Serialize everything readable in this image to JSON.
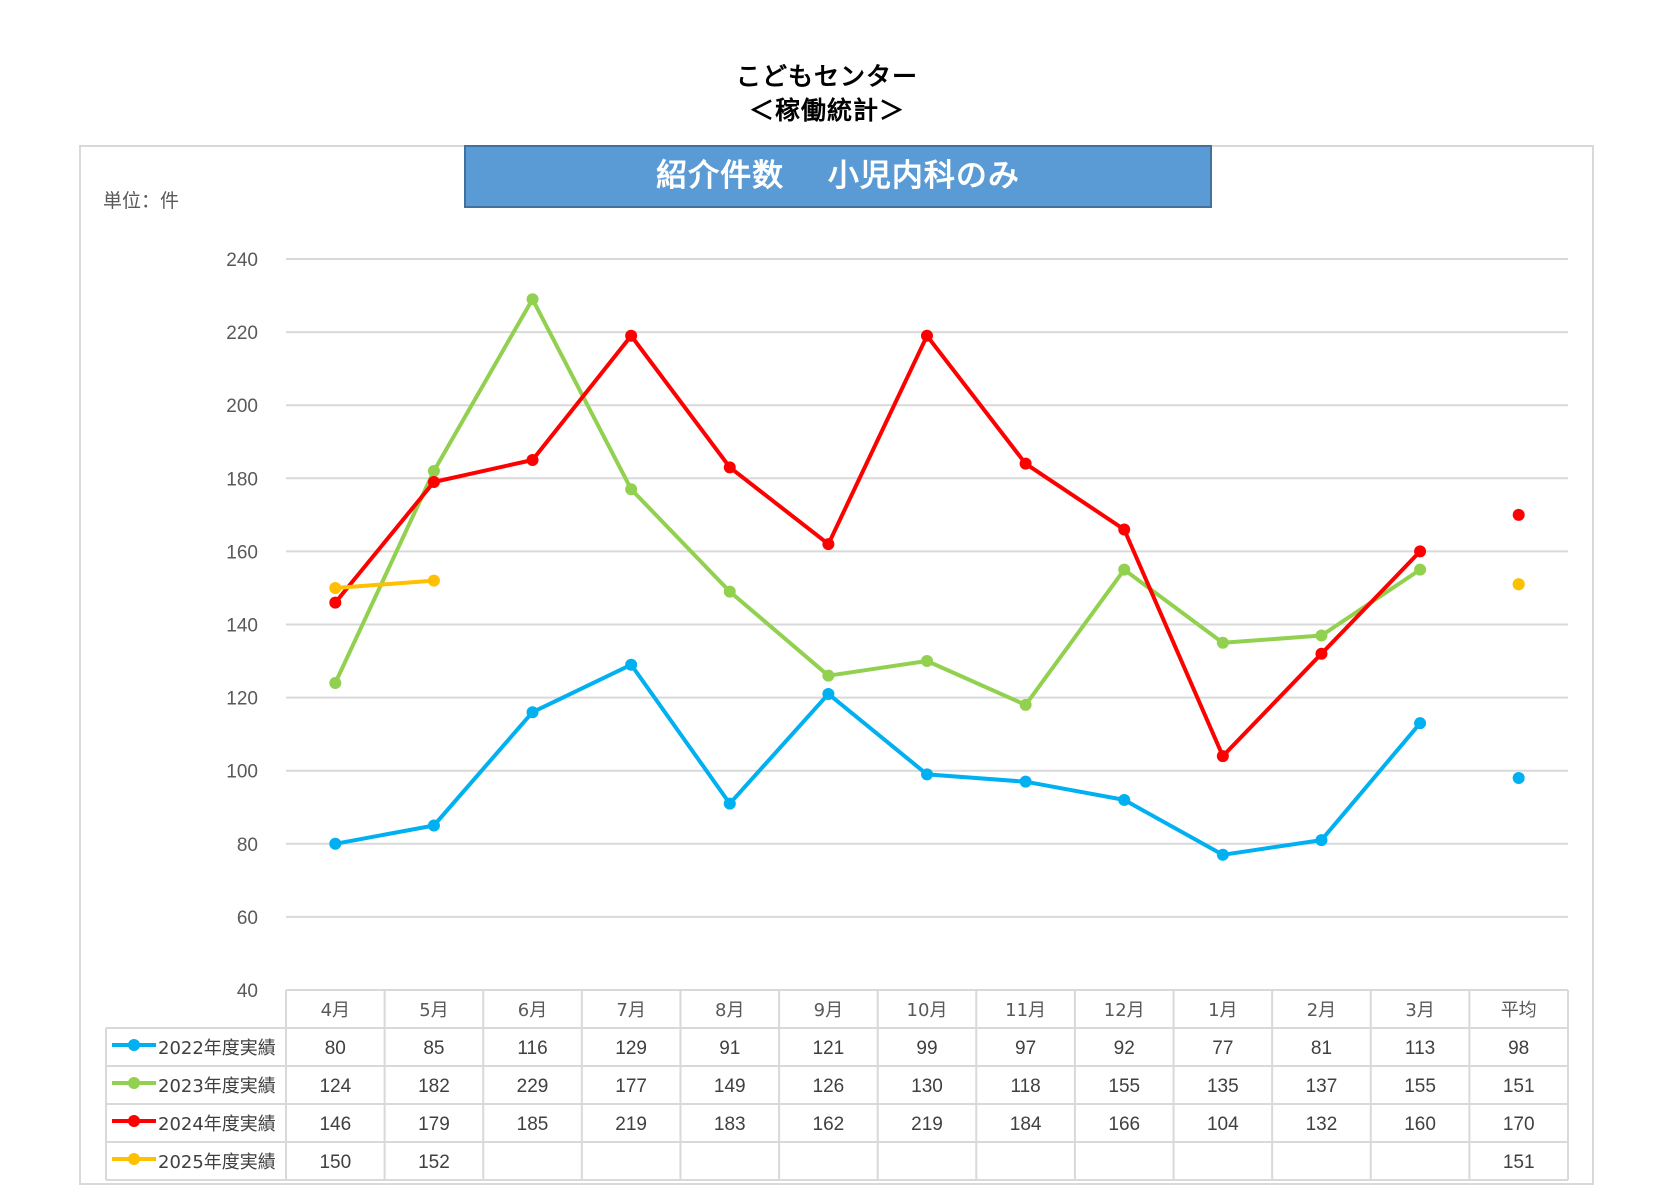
{
  "header": {
    "title_line1": "こどもセンター",
    "title_line2": "＜稼働統計＞"
  },
  "chart_title": "紹介件数　 小児内科のみ",
  "unit_label": "単位：件",
  "chart_data": {
    "type": "line",
    "categories": [
      "4月",
      "5月",
      "6月",
      "7月",
      "8月",
      "9月",
      "10月",
      "11月",
      "12月",
      "1月",
      "2月",
      "3月"
    ],
    "average_label": "平均",
    "ylim": [
      40,
      240
    ],
    "yticks": [
      40,
      60,
      80,
      100,
      120,
      140,
      160,
      180,
      200,
      220,
      240
    ],
    "grid": true,
    "legend_position": "data-table-left",
    "series": [
      {
        "name": "2022年度実績",
        "color": "#00b0f0",
        "values": [
          80,
          85,
          116,
          129,
          91,
          121,
          99,
          97,
          92,
          77,
          81,
          113
        ],
        "average": 98
      },
      {
        "name": "2023年度実績",
        "color": "#92d050",
        "values": [
          124,
          182,
          229,
          177,
          149,
          126,
          130,
          118,
          155,
          135,
          137,
          155
        ],
        "average": 151
      },
      {
        "name": "2024年度実績",
        "color": "#ff0000",
        "values": [
          146,
          179,
          185,
          219,
          183,
          162,
          219,
          184,
          166,
          104,
          132,
          160
        ],
        "average": 170
      },
      {
        "name": "2025年度実績",
        "color": "#ffc000",
        "values": [
          150,
          152,
          null,
          null,
          null,
          null,
          null,
          null,
          null,
          null,
          null,
          null
        ],
        "average": 151
      }
    ]
  }
}
